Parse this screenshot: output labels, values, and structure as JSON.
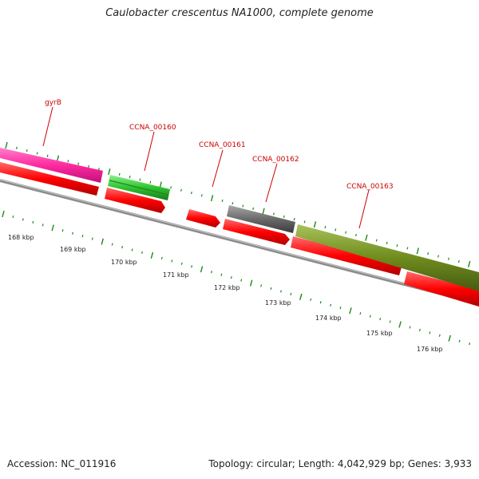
{
  "header": {
    "title": "Caulobacter crescentus NA1000, complete genome"
  },
  "footer": {
    "accession": "Accession: NC_011916",
    "summary": "Topology: circular; Length: 4,042,929 bp; Genes: 3,933"
  },
  "colors": {
    "background": "#ffffff",
    "gene_label": "#cc0000",
    "tick": "#1a8a1a",
    "backbone": "#8c8c8c",
    "cds_red": "#ff0000",
    "magenta": "#ff2aa0",
    "green": "#2fc42f",
    "gray": "#6a6a6a",
    "olive": "#6f8c1e"
  },
  "scale": {
    "labels": [
      "168 kbp",
      "169 kbp",
      "170 kbp",
      "171 kbp",
      "172 kbp",
      "173 kbp",
      "174 kbp",
      "175 kbp",
      "176 kbp"
    ]
  },
  "genes": [
    {
      "label": "gyrB",
      "color": "magenta"
    },
    {
      "label": "CCNA_00160",
      "color": "green"
    },
    {
      "label": "CCNA_00161",
      "color": "cds_red"
    },
    {
      "label": "CCNA_00162",
      "color": "gray"
    },
    {
      "label": "CCNA_00163",
      "color": "olive"
    }
  ]
}
